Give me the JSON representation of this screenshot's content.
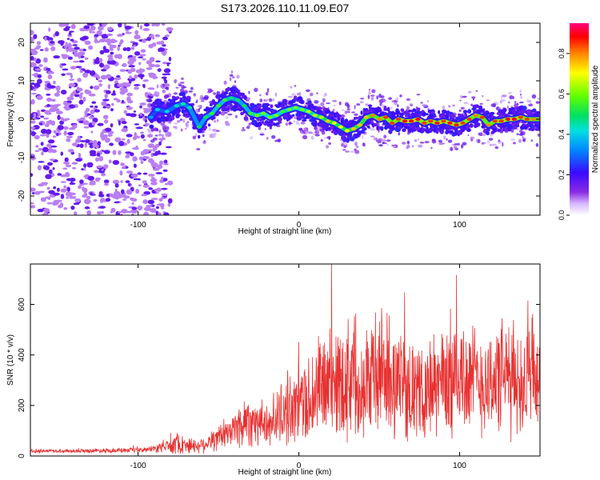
{
  "title": "S173.2026.110.11.09.E07",
  "chart_data": [
    {
      "type": "heatmap",
      "name": "spectrogram",
      "xlabel": "Height of straight line (km)",
      "ylabel": "Frequency (Hz)",
      "xlim": [
        -167,
        150
      ],
      "ylim": [
        -25,
        25
      ],
      "xticks": [
        -100,
        0,
        100
      ],
      "yticks": [
        -20,
        -10,
        0,
        10,
        20
      ],
      "colorbar": {
        "label": "Normalized spectral amplitude",
        "range": [
          0.0,
          0.95
        ],
        "ticks": [
          0.0,
          0.2,
          0.4,
          0.6,
          0.8
        ]
      },
      "ridge_frequency_hz": {
        "x": [
          -92,
          -88,
          -82,
          -76,
          -72,
          -68,
          -62,
          -58,
          -54,
          -50,
          -46,
          -42,
          -38,
          -34,
          -30,
          -26,
          -22,
          -18,
          -14,
          -10,
          -6,
          -2,
          2,
          6,
          10,
          14,
          18,
          22,
          26,
          30,
          34,
          38,
          42,
          46,
          50,
          54,
          58,
          62,
          66,
          70,
          74,
          78,
          82,
          86,
          90,
          94,
          98,
          102,
          106,
          110,
          114,
          118,
          122,
          126,
          130,
          134,
          138,
          142,
          146,
          150
        ],
        "y": [
          0.5,
          2.5,
          2.0,
          3.5,
          4.0,
          3.0,
          -2.0,
          0.5,
          1.5,
          3.5,
          5.0,
          5.5,
          5.0,
          3.5,
          1.5,
          1.0,
          1.5,
          0.5,
          1.0,
          2.0,
          2.5,
          3.0,
          2.5,
          2.0,
          1.0,
          0.5,
          -0.5,
          -1.0,
          -2.0,
          -3.0,
          -2.5,
          -1.5,
          0.5,
          1.0,
          0.0,
          0.5,
          -1.0,
          0.0,
          -0.5,
          -0.5,
          0.0,
          -1.0,
          -0.5,
          -1.0,
          -0.5,
          -1.0,
          -1.5,
          -1.0,
          0.0,
          1.0,
          0.5,
          -1.5,
          -0.5,
          -0.5,
          0.0,
          0.0,
          0.5,
          0.0,
          0.0,
          0.0
        ],
        "amplitude": [
          0.35,
          0.4,
          0.4,
          0.45,
          0.45,
          0.45,
          0.5,
          0.5,
          0.55,
          0.55,
          0.55,
          0.5,
          0.5,
          0.5,
          0.55,
          0.6,
          0.6,
          0.6,
          0.6,
          0.55,
          0.6,
          0.6,
          0.6,
          0.65,
          0.65,
          0.65,
          0.75,
          0.7,
          0.7,
          0.7,
          0.75,
          0.75,
          0.75,
          0.8,
          0.8,
          0.85,
          0.85,
          0.85,
          0.9,
          0.9,
          0.9,
          0.85,
          0.85,
          0.9,
          0.85,
          0.9,
          0.9,
          0.85,
          0.85,
          0.8,
          0.85,
          0.8,
          0.85,
          0.85,
          0.9,
          0.9,
          0.85,
          0.85,
          0.8,
          0.8
        ]
      },
      "noise_floor_amplitude": 0.2,
      "noise_region_x": [
        -167,
        -90
      ]
    },
    {
      "type": "line",
      "name": "snr",
      "xlabel": "Height of straight line (km)",
      "ylabel": "SNR (10 * v/v)",
      "xlim": [
        -167,
        150
      ],
      "ylim": [
        0,
        760
      ],
      "xticks": [
        -100,
        0,
        100
      ],
      "yticks": [
        0,
        200,
        400,
        600
      ],
      "color": "#e83030",
      "envelope": {
        "x": [
          -167,
          -140,
          -120,
          -100,
          -90,
          -85,
          -80,
          -75,
          -70,
          -65,
          -60,
          -55,
          -50,
          -45,
          -40,
          -35,
          -30,
          -25,
          -20,
          -15,
          -10,
          -5,
          0,
          5,
          10,
          15,
          20,
          25,
          30,
          35,
          40,
          45,
          50,
          55,
          60,
          65,
          70,
          75,
          80,
          85,
          90,
          95,
          100,
          105,
          110,
          115,
          120,
          125,
          130,
          135,
          140,
          145,
          150
        ],
        "mean": [
          20,
          20,
          22,
          22,
          28,
          35,
          45,
          50,
          45,
          40,
          45,
          60,
          70,
          85,
          110,
          130,
          150,
          130,
          120,
          150,
          170,
          190,
          200,
          220,
          250,
          280,
          290,
          300,
          310,
          320,
          300,
          320,
          330,
          320,
          300,
          280,
          270,
          240,
          260,
          280,
          300,
          310,
          320,
          310,
          300,
          290,
          300,
          310,
          310,
          300,
          290,
          300,
          310
        ],
        "spread": [
          8,
          8,
          10,
          10,
          15,
          25,
          40,
          45,
          40,
          30,
          35,
          45,
          55,
          60,
          80,
          110,
          120,
          90,
          90,
          110,
          140,
          150,
          160,
          190,
          220,
          230,
          240,
          250,
          260,
          260,
          240,
          260,
          270,
          250,
          240,
          220,
          200,
          180,
          200,
          220,
          240,
          260,
          280,
          240,
          230,
          220,
          230,
          240,
          250,
          240,
          220,
          240,
          250
        ]
      }
    }
  ]
}
